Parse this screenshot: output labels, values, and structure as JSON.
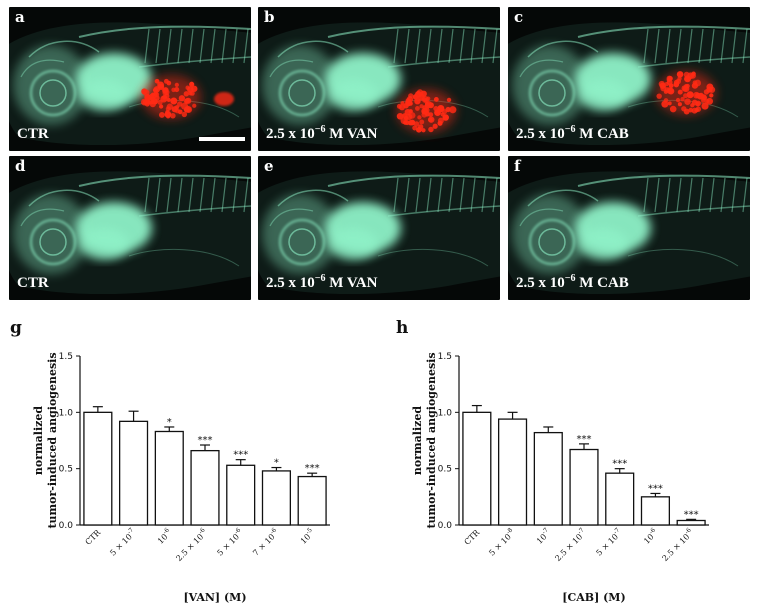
{
  "panels": [
    {
      "letter": "a",
      "text": "CTR",
      "conc": "",
      "unit": "",
      "drug": "",
      "tumor": "large",
      "scalebar": true
    },
    {
      "letter": "b",
      "text": "",
      "conc": "2.5 x 10",
      "exp": "−6",
      "unit": "M VAN",
      "tumor": "large"
    },
    {
      "letter": "c",
      "text": "",
      "conc": "2.5 x 10",
      "exp": "−6",
      "unit": "M CAB",
      "tumor": "large"
    },
    {
      "letter": "d",
      "text": "CTR",
      "tumor": "none"
    },
    {
      "letter": "e",
      "text": "",
      "conc": "2.5 x 10",
      "exp": "−6",
      "unit": "M VAN",
      "tumor": "none"
    },
    {
      "letter": "f",
      "text": "",
      "conc": "2.5 x 10",
      "exp": "−6",
      "unit": "M CAB",
      "tumor": "none"
    }
  ],
  "chart_labels": {
    "g": "g",
    "h": "h"
  },
  "colors": {
    "vessel": "#8ff2c8",
    "tumor": "#ff2a14",
    "bar_fill": "#ffffff",
    "bar_stroke": "#111111"
  },
  "chart_data": [
    {
      "type": "bar",
      "title": "",
      "ylabel_line1": "normalized",
      "ylabel_line2": "tumor-induced angiogenesis",
      "xlabel": "[VAN] (M)",
      "ylim": [
        0,
        1.5
      ],
      "yticks": [
        "0.0",
        "0.5",
        "1.0",
        "1.5"
      ],
      "categories": [
        {
          "base": "CTR",
          "exp": ""
        },
        {
          "base": "5 × 10",
          "exp": "-7"
        },
        {
          "base": "10",
          "exp": "-6"
        },
        {
          "base": "2.5 × 10",
          "exp": "-6"
        },
        {
          "base": "5 × 10",
          "exp": "-6"
        },
        {
          "base": "7 × 10",
          "exp": "-6"
        },
        {
          "base": "10",
          "exp": "-5"
        }
      ],
      "values": [
        1.0,
        0.92,
        0.83,
        0.66,
        0.53,
        0.48,
        0.43
      ],
      "errors": [
        0.05,
        0.09,
        0.04,
        0.05,
        0.05,
        0.03,
        0.03
      ],
      "significance": [
        "",
        "",
        "*",
        "***",
        "***",
        "*",
        "***"
      ]
    },
    {
      "type": "bar",
      "title": "",
      "ylabel_line1": "normalized",
      "ylabel_line2": "tumor-induced angiogenesis",
      "xlabel": "[CAB] (M)",
      "ylim": [
        0,
        1.5
      ],
      "yticks": [
        "0.0",
        "0.5",
        "1.0",
        "1.5"
      ],
      "categories": [
        {
          "base": "CTR",
          "exp": ""
        },
        {
          "base": "5 × 10",
          "exp": "-8"
        },
        {
          "base": "10",
          "exp": "-7"
        },
        {
          "base": "2.5 × 10",
          "exp": "-7"
        },
        {
          "base": "5 × 10",
          "exp": "-7"
        },
        {
          "base": "10",
          "exp": "-6"
        },
        {
          "base": "2.5 × 10",
          "exp": "-6"
        }
      ],
      "values": [
        1.0,
        0.94,
        0.82,
        0.67,
        0.46,
        0.25,
        0.04
      ],
      "errors": [
        0.06,
        0.06,
        0.05,
        0.05,
        0.04,
        0.03,
        0.01
      ],
      "significance": [
        "",
        "",
        "",
        "***",
        "***",
        "***",
        "***"
      ]
    }
  ]
}
